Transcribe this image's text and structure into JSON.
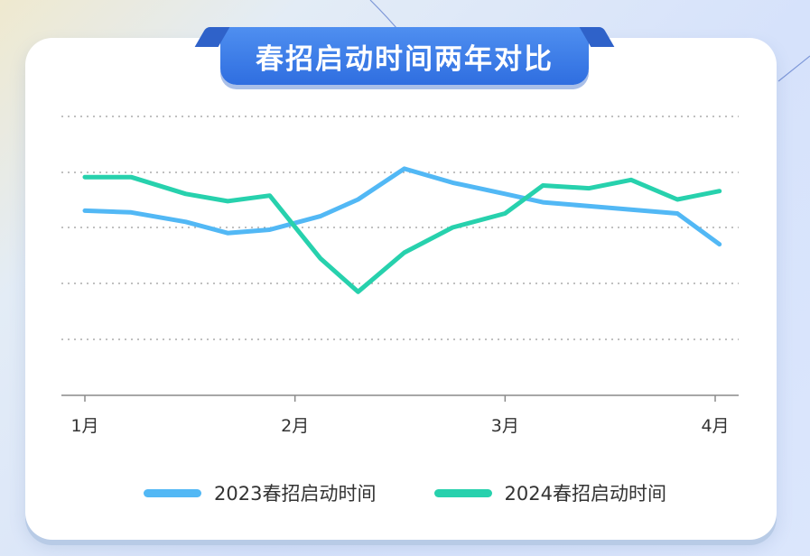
{
  "title": "春招启动时间两年对比",
  "colors": {
    "series_2023": "#52b8f5",
    "series_2024": "#27d1ad",
    "title_bg": "#3f7fe8"
  },
  "chart_data": {
    "type": "line",
    "title": "春招启动时间两年对比",
    "xlabel": "",
    "ylabel": "",
    "x_tick_labels": [
      "1月",
      "2月",
      "3月",
      "4月"
    ],
    "x": [
      1.0,
      1.22,
      1.48,
      1.68,
      1.88,
      2.12,
      2.3,
      2.52,
      2.75,
      3.0,
      3.18,
      3.4,
      3.6,
      3.82,
      4.02
    ],
    "grid": true,
    "legend": "bottom",
    "ylim": [
      0,
      5
    ],
    "series": [
      {
        "name": "2023春招启动时间",
        "color": "#52b8f5",
        "values": [
          3.3,
          3.27,
          3.1,
          2.9,
          2.96,
          3.2,
          3.5,
          4.05,
          3.8,
          3.6,
          3.45,
          3.38,
          3.32,
          3.25,
          2.7
        ]
      },
      {
        "name": "2024春招启动时间",
        "color": "#27d1ad",
        "values": [
          3.9,
          3.9,
          3.6,
          3.47,
          3.57,
          2.45,
          1.85,
          2.55,
          3.0,
          3.25,
          3.75,
          3.7,
          3.85,
          3.5,
          3.65
        ]
      }
    ]
  }
}
